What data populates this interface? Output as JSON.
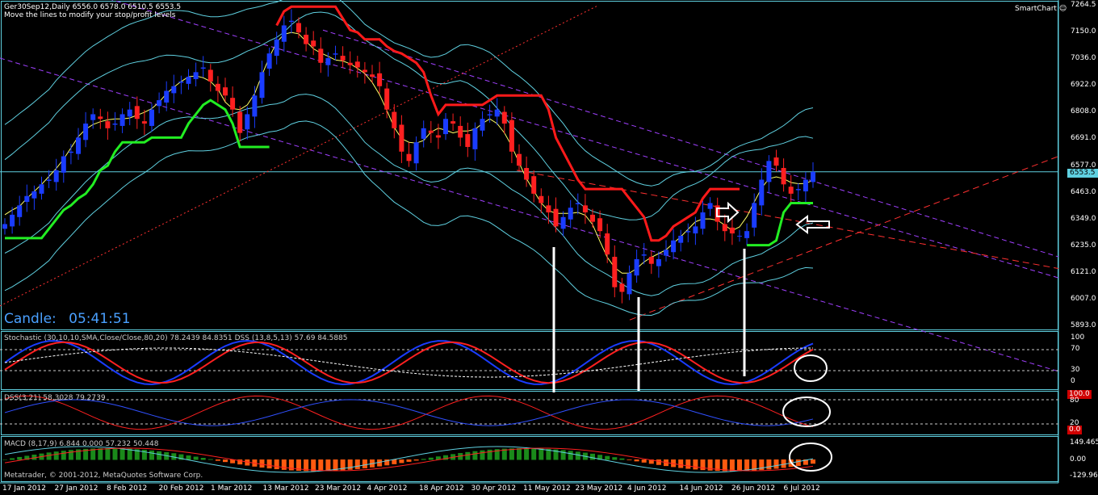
{
  "header": {
    "symbol_line": "Ger30Sep12,Daily  6556.0 6578.0 6510.5 6553.5",
    "hint": "Move the lines to modify your stop/profit levels",
    "smartchart_label": "SmartChart"
  },
  "candle_timer": {
    "label": "Candle:",
    "value": "05:41:51"
  },
  "price_axis": {
    "ticks": [
      "7264.5",
      "7150.0",
      "7036.0",
      "6922.0",
      "6808.0",
      "6691.0",
      "6577.0",
      "6463.0",
      "6349.0",
      "6235.0",
      "6121.0",
      "6007.0",
      "5893.0"
    ],
    "current_price": "6553.5"
  },
  "stoch_panel": {
    "label": "Stochastic (30,10,10,SMA,Close/Close,80,20) 78.2439 84.8351  DSS (13,8,5,13)  57.69  84.5885",
    "ticks": [
      "100",
      "70",
      "30",
      "0"
    ]
  },
  "dss_panel": {
    "label": "DSS(3,21) 58.3028 79.2739",
    "tag_top": "100.0",
    "tag_bottom": "0.0",
    "ticks": [
      "80",
      "20"
    ]
  },
  "macd_panel": {
    "label": "MACD (8,17,9) 6.844 0.000 57.232 50.448",
    "ticks": [
      "149.465",
      "0.00",
      "-129.966"
    ]
  },
  "copyright": "Metatrader, © 2001-2012, MetaQuotes Software Corp.",
  "date_axis": [
    "17 Jan 2012",
    "27 Jan 2012",
    "8 Feb 2012",
    "20 Feb 2012",
    "1 Mar 2012",
    "13 Mar 2012",
    "23 Mar 2012",
    "4 Apr 2012",
    "18 Apr 2012",
    "30 Apr 2012",
    "11 May 2012",
    "23 May 2012",
    "4 Jun 2012",
    "14 Jun 2012",
    "26 Jun 2012",
    "6 Jul 2012"
  ],
  "colors": {
    "bull": "#1a3cff",
    "bear": "#ff2020",
    "trail_up": "#22ee22",
    "trail_down": "#ff1a1a",
    "bands": "#5fd0e0",
    "channel": "#a040ff",
    "axis": "#5fd0e0"
  },
  "chart_data": {
    "type": "candlestick",
    "symbol": "Ger30Sep12",
    "timeframe": "Daily",
    "ohlc_last": {
      "open": 6556.0,
      "high": 6578.0,
      "low": 6510.5,
      "close": 6553.5
    },
    "ylim": [
      5893.0,
      7264.5
    ],
    "closes": [
      6330,
      6370,
      6410,
      6450,
      6470,
      6500,
      6520,
      6560,
      6620,
      6640,
      6700,
      6760,
      6800,
      6780,
      6740,
      6760,
      6800,
      6820,
      6780,
      6760,
      6820,
      6860,
      6900,
      6920,
      6940,
      6960,
      6980,
      7000,
      6940,
      6900,
      6880,
      6820,
      6720,
      6800,
      6880,
      6980,
      7060,
      7120,
      7180,
      7200,
      7150,
      7100,
      7090,
      7020,
      7040,
      7060,
      7030,
      7010,
      7000,
      6980,
      6960,
      6920,
      6820,
      6740,
      6640,
      6600,
      6680,
      6740,
      6720,
      6700,
      6780,
      6760,
      6700,
      6660,
      6740,
      6780,
      6800,
      6820,
      6760,
      6640,
      6580,
      6520,
      6460,
      6420,
      6380,
      6320,
      6360,
      6400,
      6420,
      6380,
      6340,
      6300,
      6200,
      6060,
      6040,
      6120,
      6180,
      6200,
      6160,
      6180,
      6220,
      6260,
      6280,
      6300,
      6320,
      6380,
      6420,
      6340,
      6300,
      6290,
      6280,
      6300,
      6420,
      6520,
      6600,
      6580,
      6500,
      6460,
      6480,
      6520,
      6553.5
    ]
  }
}
